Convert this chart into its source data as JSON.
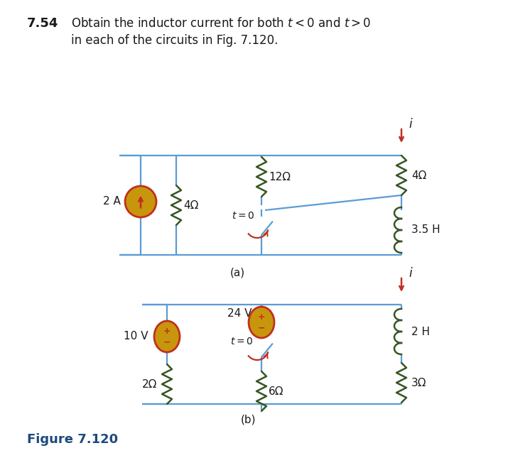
{
  "bg_color": "#ffffff",
  "wire_color": "#5b9bd5",
  "resistor_color": "#375623",
  "inductor_color": "#375623",
  "source_fill": "#c8960c",
  "source_edge": "#c03020",
  "arrow_color": "#c03020",
  "switch_wire_color": "#5b9bd5",
  "switch_arrow_color": "#c03020",
  "label_color": "#1a1a1a",
  "fig_label_color": "#1f497d",
  "title_num": "7.54",
  "title_line1": "Obtain the inductor current for both $t < 0$ and $t > 0$",
  "title_line2": "in each of the circuits in Fig. 7.120.",
  "fig_caption": "Figure 7.120",
  "sub_a": "(a)",
  "sub_b": "(b)"
}
